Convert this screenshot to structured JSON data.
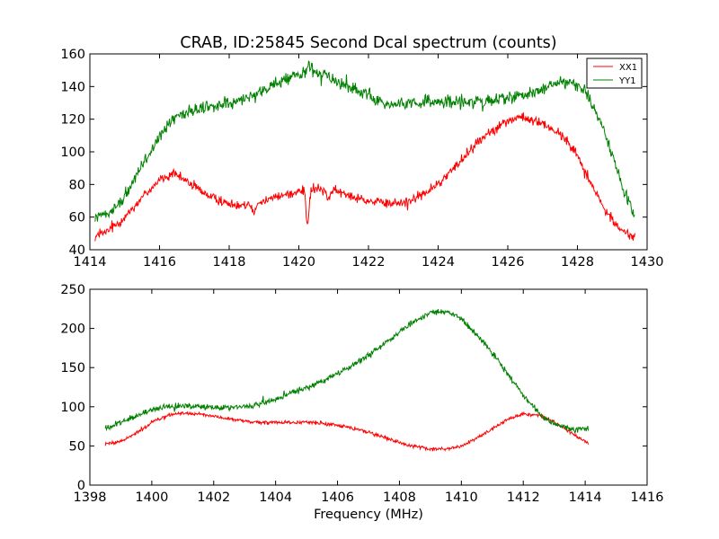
{
  "chart_data": [
    {
      "type": "line",
      "title": "CRAB, ID:25845 Second Dcal spectrum (counts)",
      "xlabel": "",
      "ylabel": "",
      "xlim": [
        1414,
        1430
      ],
      "ylim": [
        40,
        160
      ],
      "xticks": [
        "1414",
        "1416",
        "1418",
        "1420",
        "1422",
        "1424",
        "1426",
        "1428",
        "1430"
      ],
      "yticks": [
        "40",
        "60",
        "80",
        "100",
        "120",
        "140",
        "160"
      ],
      "grid": false,
      "legend": "top-right",
      "x_range": [
        1414.15,
        1429.65
      ],
      "series": [
        {
          "name": "XX1",
          "color": "#ff0000",
          "noise": 2.5,
          "points": [
            [
              1414.15,
              48
            ],
            [
              1414.5,
              51
            ],
            [
              1415.0,
              60
            ],
            [
              1415.5,
              72
            ],
            [
              1416.0,
              83
            ],
            [
              1416.4,
              86
            ],
            [
              1416.8,
              82
            ],
            [
              1417.2,
              76
            ],
            [
              1417.6,
              71
            ],
            [
              1418.0,
              68
            ],
            [
              1418.5,
              68
            ],
            [
              1419.0,
              70
            ],
            [
              1419.5,
              73
            ],
            [
              1420.0,
              76
            ],
            [
              1420.5,
              77
            ],
            [
              1421.0,
              76
            ],
            [
              1421.5,
              73
            ],
            [
              1422.0,
              70
            ],
            [
              1422.5,
              68
            ],
            [
              1423.0,
              69
            ],
            [
              1423.5,
              73
            ],
            [
              1424.0,
              80
            ],
            [
              1424.5,
              91
            ],
            [
              1425.0,
              103
            ],
            [
              1425.5,
              113
            ],
            [
              1426.0,
              119
            ],
            [
              1426.4,
              121
            ],
            [
              1426.8,
              119
            ],
            [
              1427.2,
              115
            ],
            [
              1427.6,
              109
            ],
            [
              1428.0,
              98
            ],
            [
              1428.4,
              80
            ],
            [
              1428.8,
              64
            ],
            [
              1429.2,
              53
            ],
            [
              1429.65,
              47
            ]
          ],
          "dips": [
            [
              1420.25,
              -22
            ],
            [
              1418.7,
              -6
            ],
            [
              1420.85,
              -5
            ]
          ]
        },
        {
          "name": "YY1",
          "color": "#008000",
          "noise": 3.2,
          "points": [
            [
              1414.15,
              60
            ],
            [
              1414.5,
              62
            ],
            [
              1415.0,
              72
            ],
            [
              1415.5,
              92
            ],
            [
              1416.0,
              110
            ],
            [
              1416.5,
              122
            ],
            [
              1417.0,
              126
            ],
            [
              1417.5,
              128
            ],
            [
              1418.0,
              130
            ],
            [
              1418.5,
              133
            ],
            [
              1419.0,
              138
            ],
            [
              1419.5,
              144
            ],
            [
              1420.0,
              147
            ],
            [
              1420.4,
              149
            ],
            [
              1420.8,
              146
            ],
            [
              1421.2,
              142
            ],
            [
              1421.6,
              138
            ],
            [
              1422.0,
              134
            ],
            [
              1422.5,
              130
            ],
            [
              1423.0,
              130
            ],
            [
              1423.5,
              131
            ],
            [
              1424.0,
              131
            ],
            [
              1424.5,
              131
            ],
            [
              1425.0,
              131
            ],
            [
              1425.5,
              132
            ],
            [
              1426.0,
              133
            ],
            [
              1426.5,
              135
            ],
            [
              1427.0,
              138
            ],
            [
              1427.4,
              142
            ],
            [
              1427.8,
              143
            ],
            [
              1428.2,
              138
            ],
            [
              1428.6,
              122
            ],
            [
              1429.0,
              98
            ],
            [
              1429.3,
              78
            ],
            [
              1429.65,
              60
            ]
          ],
          "dips": [
            [
              1425.3,
              -4
            ],
            [
              1420.3,
              5
            ]
          ]
        }
      ],
      "legend_entries": [
        "XX1",
        "YY1"
      ]
    },
    {
      "type": "line",
      "title": "",
      "xlabel": "Frequency (MHz)",
      "ylabel": "",
      "xlim": [
        1398,
        1416
      ],
      "ylim": [
        0,
        250
      ],
      "xticks": [
        "1398",
        "1400",
        "1402",
        "1404",
        "1406",
        "1408",
        "1410",
        "1412",
        "1414",
        "1416"
      ],
      "yticks": [
        "0",
        "50",
        "100",
        "150",
        "200",
        "250"
      ],
      "grid": false,
      "x_range": [
        1398.5,
        1414.1
      ],
      "series": [
        {
          "name": "XX1",
          "color": "#ff0000",
          "noise": 1.8,
          "points": [
            [
              1398.5,
              53
            ],
            [
              1399.0,
              56
            ],
            [
              1399.5,
              66
            ],
            [
              1400.0,
              80
            ],
            [
              1400.5,
              89
            ],
            [
              1401.0,
              92
            ],
            [
              1401.5,
              91
            ],
            [
              1402.0,
              88
            ],
            [
              1402.5,
              85
            ],
            [
              1403.0,
              82
            ],
            [
              1403.5,
              80
            ],
            [
              1404.0,
              80
            ],
            [
              1404.5,
              80
            ],
            [
              1405.0,
              80
            ],
            [
              1405.5,
              79
            ],
            [
              1406.0,
              76
            ],
            [
              1406.5,
              73
            ],
            [
              1407.0,
              68
            ],
            [
              1407.5,
              61
            ],
            [
              1408.0,
              54
            ],
            [
              1408.5,
              49
            ],
            [
              1409.0,
              46
            ],
            [
              1409.5,
              46
            ],
            [
              1410.0,
              50
            ],
            [
              1410.5,
              60
            ],
            [
              1411.0,
              72
            ],
            [
              1411.5,
              84
            ],
            [
              1412.0,
              91
            ],
            [
              1412.5,
              89
            ],
            [
              1413.0,
              81
            ],
            [
              1413.5,
              68
            ],
            [
              1414.1,
              53
            ]
          ],
          "dips": []
        },
        {
          "name": "YY1",
          "color": "#008000",
          "noise": 3.0,
          "points": [
            [
              1398.5,
              73
            ],
            [
              1399.0,
              80
            ],
            [
              1399.5,
              89
            ],
            [
              1400.0,
              96
            ],
            [
              1400.5,
              100
            ],
            [
              1401.0,
              101
            ],
            [
              1401.5,
              100
            ],
            [
              1402.0,
              99
            ],
            [
              1402.5,
              99
            ],
            [
              1403.0,
              100
            ],
            [
              1403.5,
              104
            ],
            [
              1404.0,
              110
            ],
            [
              1404.5,
              117
            ],
            [
              1405.0,
              124
            ],
            [
              1405.5,
              132
            ],
            [
              1406.0,
              142
            ],
            [
              1406.5,
              153
            ],
            [
              1407.0,
              166
            ],
            [
              1407.5,
              180
            ],
            [
              1408.0,
              195
            ],
            [
              1408.5,
              210
            ],
            [
              1409.0,
              220
            ],
            [
              1409.5,
              222
            ],
            [
              1410.0,
              212
            ],
            [
              1410.5,
              192
            ],
            [
              1411.0,
              168
            ],
            [
              1411.5,
              142
            ],
            [
              1412.0,
              115
            ],
            [
              1412.5,
              92
            ],
            [
              1413.0,
              78
            ],
            [
              1413.5,
              72
            ],
            [
              1414.1,
              71
            ]
          ],
          "dips": []
        }
      ]
    }
  ]
}
